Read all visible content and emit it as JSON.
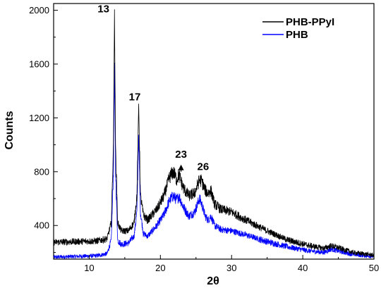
{
  "chart_data": {
    "type": "line",
    "xlabel": "2θ",
    "ylabel": "Counts",
    "xlim": [
      5,
      50
    ],
    "ylim": [
      150,
      2050
    ],
    "xticks": [
      10,
      20,
      30,
      40,
      50
    ],
    "yticks": [
      400,
      800,
      1200,
      1600,
      2000
    ],
    "grid": false,
    "legend_position": "top-right",
    "series": [
      {
        "name": "PHB-PPyI",
        "color": "#000000",
        "x": [
          5,
          8,
          11,
          12.5,
          13.1,
          13.4,
          13.55,
          13.7,
          14.0,
          14.5,
          15.5,
          16.3,
          16.7,
          16.95,
          17.2,
          17.6,
          18.2,
          19.5,
          20.5,
          21.3,
          21.8,
          22.3,
          22.6,
          23.2,
          24.0,
          24.8,
          25.5,
          25.8,
          26.3,
          26.7,
          27.1,
          27.6,
          28.5,
          30,
          32,
          35,
          38,
          41,
          43,
          44,
          45,
          47,
          50
        ],
        "y": [
          275,
          280,
          285,
          300,
          420,
          1000,
          1980,
          1000,
          420,
          360,
          360,
          420,
          620,
          1300,
          620,
          480,
          440,
          520,
          620,
          760,
          800,
          740,
          780,
          680,
          620,
          640,
          740,
          730,
          660,
          640,
          660,
          560,
          520,
          500,
          440,
          360,
          290,
          250,
          230,
          250,
          235,
          200,
          180
        ]
      },
      {
        "name": "PHB",
        "color": "#0000ff",
        "x": [
          5,
          8,
          11,
          12.5,
          13.1,
          13.4,
          13.55,
          13.7,
          14.0,
          14.5,
          15.5,
          16.3,
          16.7,
          16.95,
          17.2,
          17.6,
          18.2,
          19.5,
          20.5,
          21.3,
          21.8,
          22.3,
          22.6,
          23.2,
          24.0,
          24.8,
          25.5,
          25.8,
          26.3,
          26.7,
          27.1,
          27.6,
          28.5,
          30,
          32,
          35,
          38,
          41,
          43,
          44,
          45,
          47,
          50
        ],
        "y": [
          165,
          170,
          175,
          190,
          290,
          800,
          1590,
          800,
          290,
          260,
          270,
          320,
          500,
          1060,
          500,
          340,
          320,
          400,
          480,
          590,
          620,
          590,
          620,
          540,
          470,
          500,
          600,
          560,
          470,
          440,
          470,
          400,
          370,
          360,
          330,
          280,
          240,
          210,
          200,
          225,
          210,
          185,
          170
        ]
      }
    ],
    "annotations": [
      {
        "text": "13",
        "x": 12.0,
        "y": 1985
      },
      {
        "text": "17",
        "x": 16.4,
        "y": 1330
      },
      {
        "text": "23",
        "x": 22.9,
        "y": 905
      },
      {
        "text": "26",
        "x": 26.0,
        "y": 812
      }
    ],
    "arrow_annotation": {
      "x": 22.9,
      "y_from": 800,
      "y_to": 905
    }
  }
}
